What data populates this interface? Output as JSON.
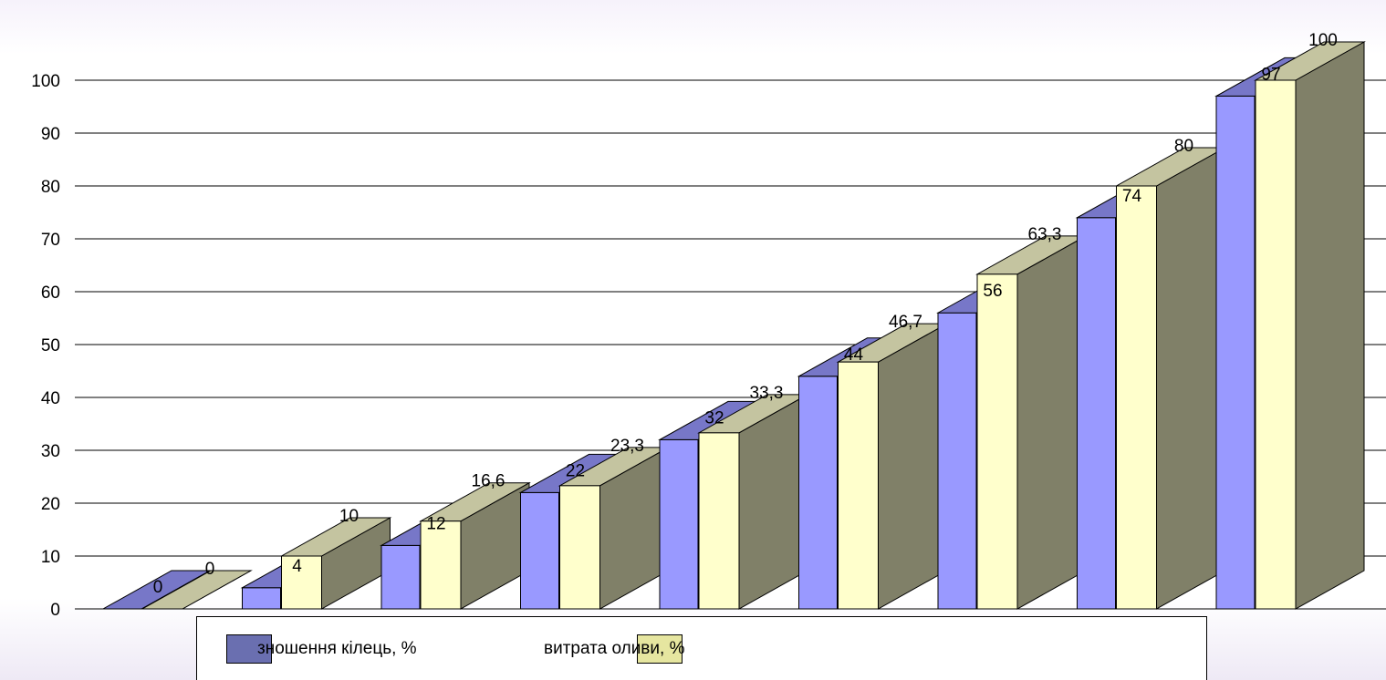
{
  "chart_data": {
    "type": "bar",
    "title": "",
    "xlabel": "",
    "ylabel": "",
    "ylim": [
      0,
      100
    ],
    "yticks": [
      "0",
      "10",
      "20",
      "30",
      "40",
      "50",
      "60",
      "70",
      "80",
      "90",
      "100"
    ],
    "grid": true,
    "three_d": true,
    "legend_position": "bottom",
    "series": [
      {
        "name": "зношення кілець, %",
        "values": [
          0,
          4,
          12,
          22,
          32,
          44,
          56,
          74,
          97
        ],
        "labels": [
          "0",
          "4",
          "12",
          "22",
          "32",
          "44",
          "56",
          "74",
          "97"
        ],
        "color": "#9999ff",
        "top_color": "#7777c8",
        "legend_color": "#6a6fb0"
      },
      {
        "name": "витрата оливи, %",
        "values": [
          0,
          10,
          16.6,
          23.3,
          33.3,
          46.7,
          63.3,
          80,
          100
        ],
        "labels": [
          "0",
          "10",
          "16,6",
          "23,3",
          "33,3",
          "46,7",
          "63,3",
          "80",
          "100"
        ],
        "color": "#ffffcc",
        "top_color": "#c4c4a0",
        "side_color": "#808068",
        "legend_color": "#e6e6a0"
      }
    ]
  }
}
